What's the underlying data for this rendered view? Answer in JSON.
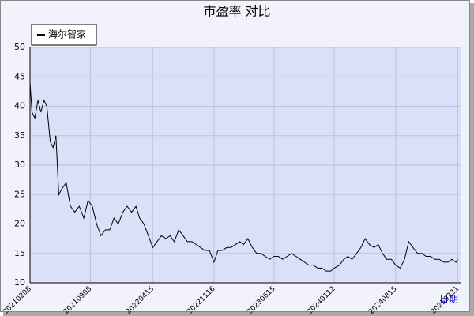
{
  "chart_data": {
    "type": "line",
    "title": "市盈率  对比",
    "x_label": "日期",
    "xlim": [
      "20210208",
      "20250331"
    ],
    "xticks": [
      "20210208",
      "20210908",
      "20220415",
      "20221116",
      "20230615",
      "20240112",
      "20240815",
      "20250321"
    ],
    "ylim": [
      10,
      50
    ],
    "yticks": [
      10,
      15,
      20,
      25,
      30,
      35,
      40,
      45,
      50
    ],
    "grid": true,
    "x": [
      "20210208",
      "20210215",
      "20210225",
      "20210308",
      "20210318",
      "20210329",
      "20210408",
      "20210420",
      "20210430",
      "20210510",
      "20210520",
      "20210531",
      "20210615",
      "20210630",
      "20210715",
      "20210731",
      "20210816",
      "20210831",
      "20210915",
      "20210930",
      "20211015",
      "20211031",
      "20211115",
      "20211130",
      "20211215",
      "20211231",
      "20220115",
      "20220131",
      "20220215",
      "20220228",
      "20220315",
      "20220331",
      "20220415",
      "20220430",
      "20220515",
      "20220531",
      "20220615",
      "20220630",
      "20220715",
      "20220731",
      "20220815",
      "20220831",
      "20220915",
      "20220930",
      "20221015",
      "20221031",
      "20221116",
      "20221130",
      "20221215",
      "20221231",
      "20230115",
      "20230131",
      "20230215",
      "20230228",
      "20230315",
      "20230331",
      "20230415",
      "20230430",
      "20230515",
      "20230531",
      "20230615",
      "20230630",
      "20230715",
      "20230731",
      "20230815",
      "20230831",
      "20230915",
      "20230930",
      "20231015",
      "20231031",
      "20231115",
      "20231130",
      "20231215",
      "20231231",
      "20240112",
      "20240131",
      "20240215",
      "20240229",
      "20240315",
      "20240331",
      "20240415",
      "20240430",
      "20240515",
      "20240531",
      "20240615",
      "20240630",
      "20240715",
      "20240731",
      "20240815",
      "20240831",
      "20240915",
      "20240930",
      "20241015",
      "20241031",
      "20241115",
      "20241130",
      "20241215",
      "20241231",
      "20250115",
      "20250131",
      "20250215",
      "20250228",
      "20250315",
      "20250321"
    ],
    "series": [
      {
        "name": "海尔智家",
        "color": "#000000",
        "values": [
          44,
          39,
          38,
          41,
          39,
          41,
          40,
          34,
          33,
          35,
          25,
          26,
          27,
          23,
          22,
          23,
          21,
          24,
          23,
          20,
          18,
          19,
          19,
          21,
          20,
          22,
          23,
          22,
          23,
          21,
          20,
          18,
          16,
          17,
          18,
          17.5,
          18,
          17,
          19,
          18,
          17,
          17,
          16.5,
          16,
          15.5,
          15.5,
          13.5,
          15.5,
          15.5,
          16,
          16,
          16.5,
          17,
          16.5,
          17.5,
          16,
          15,
          15,
          14.5,
          14,
          14.5,
          14.5,
          14,
          14.5,
          15,
          14.5,
          14,
          13.5,
          13,
          13,
          12.5,
          12.5,
          12,
          12,
          12.5,
          13,
          14,
          14.5,
          14,
          15,
          16,
          17.5,
          16.5,
          16,
          16.5,
          15,
          14,
          14,
          13,
          12.5,
          14,
          17,
          16,
          15,
          15,
          14.5,
          14.5,
          14,
          14,
          13.5,
          13.5,
          14,
          13.5,
          14
        ]
      }
    ]
  }
}
